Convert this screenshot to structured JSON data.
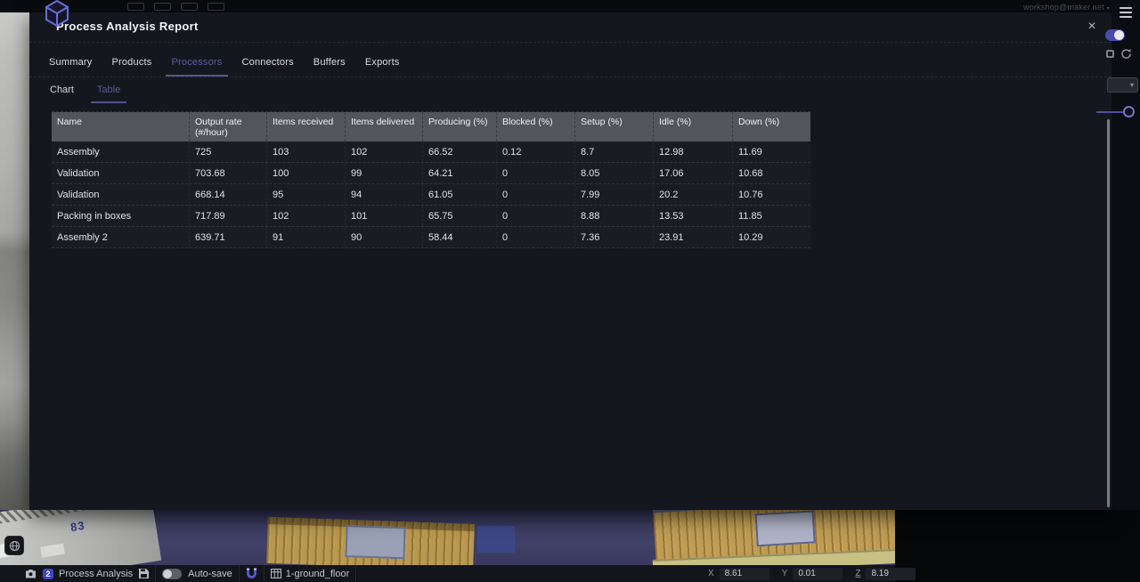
{
  "top_bar": {
    "account": "workshop@maker.net",
    "account_caret": "▾"
  },
  "modal": {
    "title": "Process Analysis Report",
    "close_glyph": "×",
    "tabs": [
      {
        "label": "Summary",
        "active": false
      },
      {
        "label": "Products",
        "active": false
      },
      {
        "label": "Processors",
        "active": true
      },
      {
        "label": "Connectors",
        "active": false
      },
      {
        "label": "Buffers",
        "active": false
      },
      {
        "label": "Exports",
        "active": false
      }
    ],
    "subtabs": [
      {
        "label": "Chart",
        "active": false
      },
      {
        "label": "Table",
        "active": true
      }
    ],
    "table": {
      "columns": [
        "Name",
        "Output rate (#/hour)",
        "Items received",
        "Items delivered",
        "Producing (%)",
        "Blocked (%)",
        "Setup (%)",
        "Idle (%)",
        "Down (%)"
      ],
      "rows": [
        [
          "Assembly",
          "725",
          "103",
          "102",
          "66.52",
          "0.12",
          "8.7",
          "12.98",
          "11.69"
        ],
        [
          "Validation",
          "703.68",
          "100",
          "99",
          "64.21",
          "0",
          "8.05",
          "17.06",
          "10.68"
        ],
        [
          "Validation",
          "668.14",
          "95",
          "94",
          "61.05",
          "0",
          "7.99",
          "20.2",
          "10.76"
        ],
        [
          "Packing in boxes",
          "717.89",
          "102",
          "101",
          "65.75",
          "0",
          "8.88",
          "13.53",
          "11.85"
        ],
        [
          "Assembly 2",
          "639.71",
          "91",
          "90",
          "58.44",
          "0",
          "7.36",
          "23.91",
          "10.29"
        ]
      ]
    }
  },
  "status_bar": {
    "badge_count": "2",
    "project_name": "Process Analysis",
    "autosave_label": "Auto-save",
    "floor_name": "1-ground_floor",
    "coords": [
      {
        "label": "X",
        "value": "8.61"
      },
      {
        "label": "Y",
        "value": "0.01"
      },
      {
        "label": "Z",
        "value": "8.19"
      }
    ]
  },
  "right_panel": {
    "dropdown_caret": "▾"
  },
  "scene": {
    "building_label": "83"
  },
  "colors": {
    "accent": "#5a5e9e",
    "badge": "#3d46c8",
    "toggle_on": "#474cab",
    "table_header": "#53555c"
  }
}
